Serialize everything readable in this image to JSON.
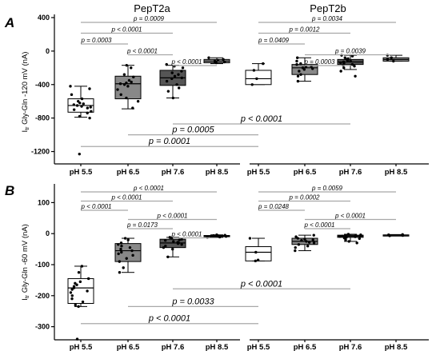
{
  "chart_data": [
    {
      "type": "box",
      "panel": "A",
      "ylabel": "I",
      "ylabel_sub": "tr",
      "ylabel_rest": " Gly-Gln -120 mV (nA)",
      "ylim": [
        -1300,
        400
      ],
      "yticks": [
        400,
        0,
        -400,
        -800,
        -1200
      ],
      "categories": [
        "pH 5.5",
        "pH 6.5",
        "pH 7.6",
        "pH 8.5"
      ],
      "groups": [
        {
          "title": "PepT2a",
          "boxes": [
            {
              "category": "pH 5.5",
              "fill": "#ffffff",
              "q1": -730,
              "median": -650,
              "q3": -570,
              "whisker_low": -790,
              "whisker_high": -420,
              "points": [
                -420,
                -450,
                -520,
                -570,
                -600,
                -620,
                -630,
                -640,
                -650,
                -660,
                -670,
                -680,
                -700,
                -720,
                -740,
                -780,
                -800,
                -1230
              ]
            },
            {
              "category": "pH 6.5",
              "fill": "#888888",
              "q1": -570,
              "median": -390,
              "q3": -300,
              "whisker_low": -690,
              "whisker_high": -170,
              "points": [
                -170,
                -200,
                -280,
                -310,
                -350,
                -370,
                -380,
                -390,
                -400,
                -420,
                -460,
                -520,
                -560,
                -600,
                -680
              ]
            },
            {
              "category": "pH 7.6",
              "fill": "#555555",
              "q1": -410,
              "median": -320,
              "q3": -230,
              "whisker_low": -560,
              "whisker_high": -170,
              "points": [
                -160,
                -180,
                -200,
                -240,
                -260,
                -280,
                -300,
                -320,
                -330,
                -360,
                -400,
                -440,
                -480,
                -560
              ]
            },
            {
              "category": "pH 8.5",
              "fill": "#999999",
              "q1": -140,
              "median": -120,
              "q3": -100,
              "whisker_low": -150,
              "whisker_high": -80,
              "points": [
                -80,
                -100,
                -110,
                -120,
                -130,
                -140
              ]
            }
          ]
        },
        {
          "title": "PepT2b",
          "boxes": [
            {
              "category": "pH 5.5",
              "fill": "#ffffff",
              "q1": -400,
              "median": -330,
              "q3": -230,
              "whisker_low": -400,
              "whisker_high": -150,
              "points": [
                -150,
                -230,
                -330,
                -400
              ]
            },
            {
              "category": "pH 6.5",
              "fill": "#888888",
              "q1": -280,
              "median": -200,
              "q3": -160,
              "whisker_low": -360,
              "whisker_high": -80,
              "points": [
                -80,
                -120,
                -150,
                -160,
                -180,
                -190,
                -200,
                -210,
                -220,
                -240,
                -280,
                -300,
                -360
              ]
            },
            {
              "category": "pH 7.6",
              "fill": "#555555",
              "q1": -160,
              "median": -130,
              "q3": -100,
              "whisker_low": -220,
              "whisker_high": -50,
              "points": [
                -50,
                -60,
                -80,
                -90,
                -100,
                -110,
                -120,
                -130,
                -140,
                -150,
                -160,
                -170,
                -180,
                -200,
                -240,
                -300
              ]
            },
            {
              "category": "pH 8.5",
              "fill": "#999999",
              "q1": -120,
              "median": -100,
              "q3": -80,
              "whisker_low": -120,
              "whisker_high": -50,
              "points": [
                -50,
                -80,
                -100,
                -120
              ]
            }
          ]
        }
      ],
      "comparisons": [
        {
          "group": 0,
          "from": 0,
          "to": 3,
          "level": 0,
          "p": "p = 0.0009"
        },
        {
          "group": 0,
          "from": 0,
          "to": 2,
          "level": 1,
          "p": "p < 0.0001"
        },
        {
          "group": 0,
          "from": 0,
          "to": 1,
          "level": 2,
          "p": "p = 0.0003"
        },
        {
          "group": 0,
          "from": 1,
          "to": 2,
          "level": 3,
          "p": "p < 0.0001"
        },
        {
          "group": 0,
          "from": 2,
          "to": 3,
          "level": 4,
          "p": "p < 0.0001"
        },
        {
          "group": 1,
          "from": 0,
          "to": 3,
          "level": 0,
          "p": "p = 0.0034"
        },
        {
          "group": 1,
          "from": 0,
          "to": 2,
          "level": 1,
          "p": "p = 0.0012"
        },
        {
          "group": 1,
          "from": 0,
          "to": 1,
          "level": 2,
          "p": "p = 0.0409"
        },
        {
          "group": 1,
          "from": 1,
          "to": 3,
          "level": 3,
          "p": "p = 0.0039"
        },
        {
          "group": 1,
          "from": 1,
          "to": 2,
          "level": 4,
          "p": "p = 0.0003"
        }
      ],
      "cross_comparisons": [
        {
          "x1": [
            0,
            2
          ],
          "x2": [
            1,
            2
          ],
          "y": -870,
          "p": "p < 0.0001"
        },
        {
          "x1": [
            0,
            1
          ],
          "x2": [
            1,
            0
          ],
          "y": -1000,
          "p": "p = 0.0005"
        },
        {
          "x1": [
            0,
            0
          ],
          "x2": [
            1,
            0
          ],
          "y": -1140,
          "p": "p = 0.0001"
        }
      ]
    },
    {
      "type": "box",
      "panel": "B",
      "ylabel": "I",
      "ylabel_sub": "tr",
      "ylabel_rest": " Gly-Gln -60 mV (nA)",
      "ylim": [
        -350,
        150
      ],
      "yticks": [
        100,
        0,
        -100,
        -200,
        -300
      ],
      "categories": [
        "pH 5.5",
        "pH 6.5",
        "pH 7.6",
        "pH 8.5"
      ],
      "groups": [
        {
          "title": "",
          "boxes": [
            {
              "category": "pH 5.5",
              "fill": "#ffffff",
              "q1": -225,
              "median": -175,
              "q3": -145,
              "whisker_low": -235,
              "whisker_high": -105,
              "points": [
                -105,
                -125,
                -145,
                -155,
                -160,
                -165,
                -170,
                -175,
                -180,
                -185,
                -190,
                -200,
                -210,
                -220,
                -230,
                -235,
                -340
              ]
            },
            {
              "category": "pH 6.5",
              "fill": "#888888",
              "q1": -90,
              "median": -55,
              "q3": -32,
              "whisker_low": -125,
              "whisker_high": -15,
              "points": [
                -15,
                -20,
                -30,
                -35,
                -40,
                -45,
                -50,
                -55,
                -60,
                -65,
                -70,
                -80,
                -90,
                -110,
                -125
              ]
            },
            {
              "category": "pH 7.6",
              "fill": "#555555",
              "q1": -45,
              "median": -30,
              "q3": -18,
              "whisker_low": -75,
              "whisker_high": -12,
              "points": [
                -12,
                -15,
                -18,
                -20,
                -22,
                -25,
                -28,
                -30,
                -32,
                -35,
                -40,
                -45,
                -50,
                -75
              ]
            },
            {
              "category": "pH 8.5",
              "fill": "#999999",
              "q1": -10,
              "median": -8,
              "q3": -6,
              "whisker_low": -12,
              "whisker_high": -4,
              "points": [
                -4,
                -5,
                -6,
                -7,
                -8,
                -9,
                -10,
                -11,
                -12
              ]
            }
          ]
        },
        {
          "title": "",
          "boxes": [
            {
              "category": "pH 5.5",
              "fill": "#ffffff",
              "q1": -88,
              "median": -60,
              "q3": -42,
              "whisker_low": -88,
              "whisker_high": -15,
              "points": [
                -15,
                -60,
                -85,
                -88
              ]
            },
            {
              "category": "pH 6.5",
              "fill": "#888888",
              "q1": -35,
              "median": -25,
              "q3": -15,
              "whisker_low": -55,
              "whisker_high": -5,
              "points": [
                -5,
                -10,
                -15,
                -18,
                -20,
                -22,
                -25,
                -28,
                -30,
                -35,
                -40,
                -45,
                -55
              ]
            },
            {
              "category": "pH 7.6",
              "fill": "#555555",
              "q1": -12,
              "median": -8,
              "q3": -5,
              "whisker_low": -25,
              "whisker_high": -2,
              "points": [
                -2,
                -4,
                -5,
                -6,
                -7,
                -8,
                -9,
                -10,
                -12,
                -14,
                -16,
                -20,
                -25,
                -30
              ]
            },
            {
              "category": "pH 8.5",
              "fill": "#999999",
              "q1": -6,
              "median": -5,
              "q3": -4,
              "whisker_low": -7,
              "whisker_high": -3,
              "points": [
                -3,
                -4,
                -5,
                -6,
                -7
              ]
            }
          ]
        }
      ],
      "comparisons": [
        {
          "group": 0,
          "from": 0,
          "to": 3,
          "level": 0,
          "p": "p < 0.0001"
        },
        {
          "group": 0,
          "from": 0,
          "to": 2,
          "level": 1,
          "p": "p < 0.0001"
        },
        {
          "group": 0,
          "from": 0,
          "to": 1,
          "level": 2,
          "p": "p < 0.0001"
        },
        {
          "group": 0,
          "from": 1,
          "to": 3,
          "level": 3,
          "p": "p < 0.0001"
        },
        {
          "group": 0,
          "from": 1,
          "to": 2,
          "level": 4,
          "p": "p = 0.0173"
        },
        {
          "group": 0,
          "from": 2,
          "to": 3,
          "level": 5,
          "p": "p < 0.0001"
        },
        {
          "group": 1,
          "from": 0,
          "to": 3,
          "level": 0,
          "p": "p = 0.0059"
        },
        {
          "group": 1,
          "from": 0,
          "to": 2,
          "level": 1,
          "p": "p = 0.0002"
        },
        {
          "group": 1,
          "from": 0,
          "to": 1,
          "level": 2,
          "p": "p = 0.0248"
        },
        {
          "group": 1,
          "from": 1,
          "to": 3,
          "level": 3,
          "p": "p < 0.0001"
        },
        {
          "group": 1,
          "from": 1,
          "to": 2,
          "level": 4,
          "p": "p < 0.0001"
        }
      ],
      "cross_comparisons": [
        {
          "x1": [
            0,
            2
          ],
          "x2": [
            1,
            2
          ],
          "y": -178,
          "p": "p < 0.0001"
        },
        {
          "x1": [
            0,
            1
          ],
          "x2": [
            1,
            0
          ],
          "y": -235,
          "p": "p = 0.0033"
        },
        {
          "x1": [
            0,
            0
          ],
          "x2": [
            1,
            0
          ],
          "y": -290,
          "p": "p < 0.0001"
        }
      ]
    }
  ]
}
